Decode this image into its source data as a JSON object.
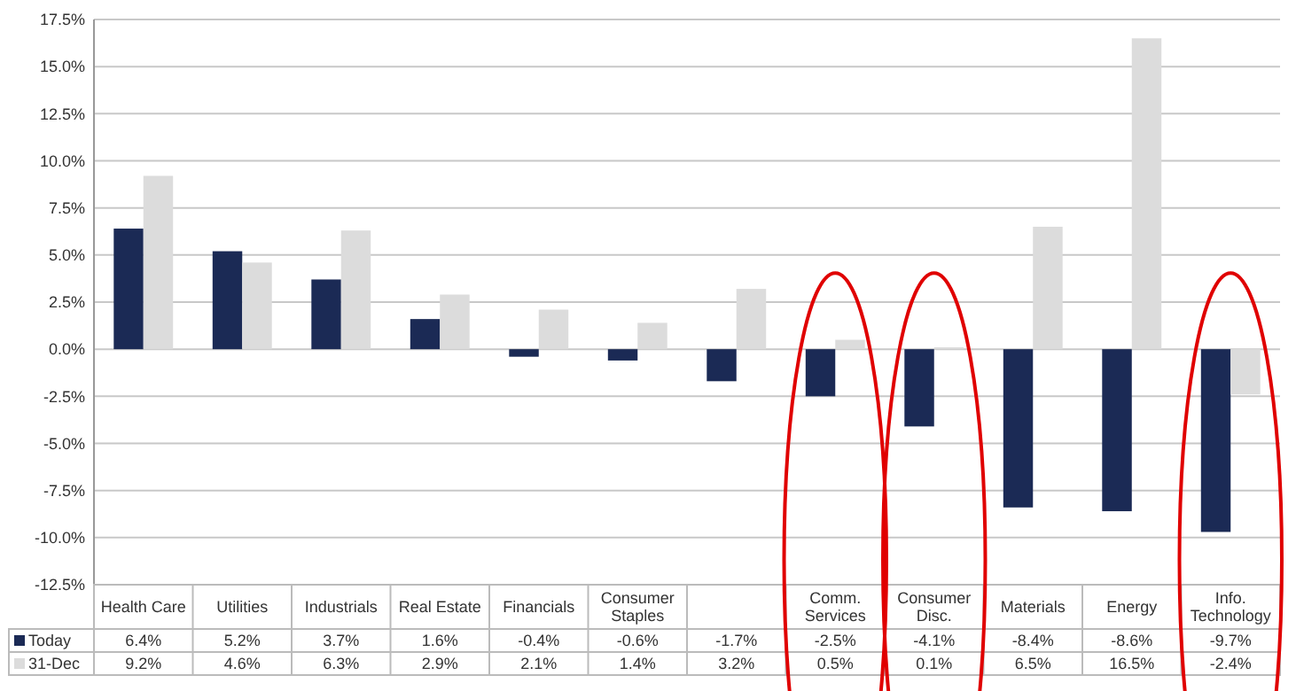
{
  "chart_data": {
    "type": "bar",
    "categories": [
      "Health Care",
      "Utilities",
      "Industrials",
      "Real Estate",
      "Financials",
      "Consumer Staples",
      null,
      "Comm. Services",
      "Consumer Disc.",
      "Materials",
      "Energy",
      "Info. Technology"
    ],
    "series": [
      {
        "name": "Today",
        "color": "#1b2a55",
        "values": [
          6.4,
          5.2,
          3.7,
          1.6,
          -0.4,
          -0.6,
          -1.7,
          -2.5,
          -4.1,
          -8.4,
          -8.6,
          -9.7
        ],
        "value_labels": [
          "6.4%",
          "5.2%",
          "3.7%",
          "1.6%",
          "-0.4%",
          "-0.6%",
          "-1.7%",
          "-2.5%",
          "-4.1%",
          "-8.4%",
          "-8.6%",
          "-9.7%"
        ]
      },
      {
        "name": "31-Dec",
        "color": "#dcdcdc",
        "values": [
          9.2,
          4.6,
          6.3,
          2.9,
          2.1,
          1.4,
          3.2,
          0.5,
          0.1,
          6.5,
          16.5,
          -2.4
        ],
        "value_labels": [
          "9.2%",
          "4.6%",
          "6.3%",
          "2.9%",
          "2.1%",
          "1.4%",
          "3.2%",
          "0.5%",
          "0.1%",
          "6.5%",
          "16.5%",
          "-2.4%"
        ]
      }
    ],
    "ylim": [
      -12.5,
      17.5
    ],
    "yticks": [
      {
        "value": -12.5,
        "label": "-12.5%"
      },
      {
        "value": -10,
        "label": "-10.0%"
      },
      {
        "value": -7.5,
        "label": "-7.5%"
      },
      {
        "value": -5,
        "label": "-5.0%"
      },
      {
        "value": -2.5,
        "label": "-2.5%"
      },
      {
        "value": 0,
        "label": "0.0%"
      },
      {
        "value": 2.5,
        "label": "2.5%"
      },
      {
        "value": 5,
        "label": "5.0%"
      },
      {
        "value": 7.5,
        "label": "7.5%"
      },
      {
        "value": 10,
        "label": "10.0%"
      },
      {
        "value": 12.5,
        "label": "12.5%"
      },
      {
        "value": 15,
        "label": "15.0%"
      },
      {
        "value": 17.5,
        "label": "17.5%"
      }
    ],
    "grid": "y",
    "legend": "bottom"
  }
}
